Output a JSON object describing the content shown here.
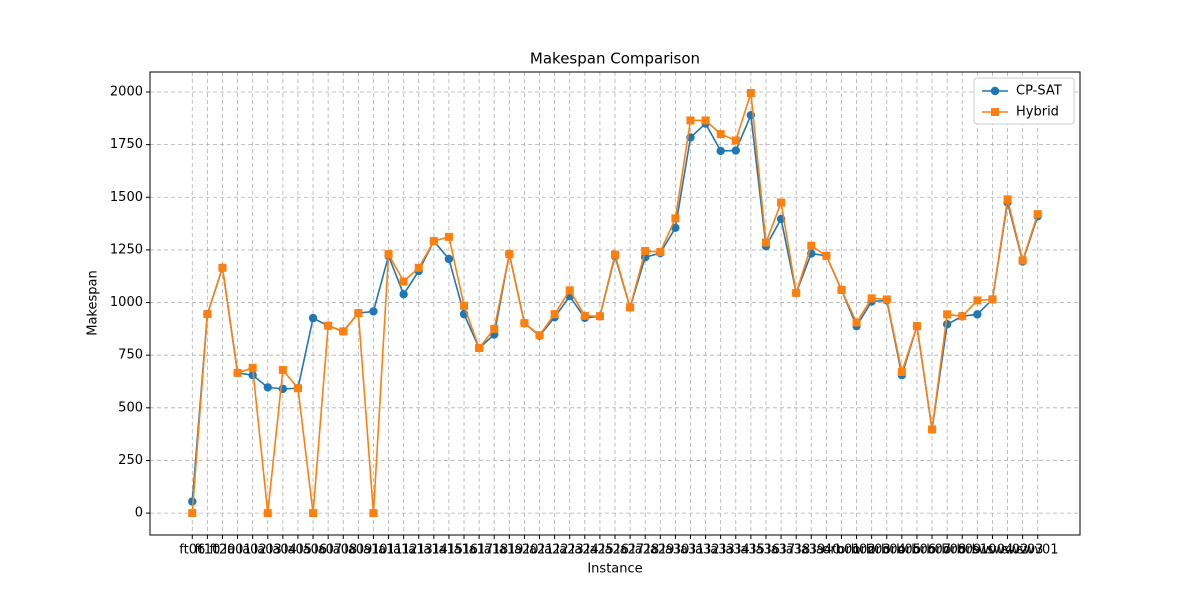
{
  "chart_data": {
    "type": "line",
    "title": "Makespan Comparison",
    "xlabel": "Instance",
    "ylabel": "Makespan",
    "categories": [
      "ft06",
      "ft10",
      "ft20",
      "la01",
      "la02",
      "la03",
      "la04",
      "la05",
      "la06",
      "la07",
      "la08",
      "la09",
      "la10",
      "la11",
      "la12",
      "la13",
      "la14",
      "la15",
      "la16",
      "la17",
      "la18",
      "la19",
      "la20",
      "la21",
      "la22",
      "la23",
      "la24",
      "la25",
      "la26",
      "la27",
      "la28",
      "la29",
      "la30",
      "la31",
      "la32",
      "la33",
      "la34",
      "la35",
      "la36",
      "la37",
      "la38",
      "la39",
      "la40",
      "orb01",
      "orb02",
      "orb03",
      "orb04",
      "orb05",
      "orb06",
      "orb07",
      "orb08",
      "orb09",
      "orb10",
      "swv04",
      "swv02",
      "swv03",
      "swv01"
    ],
    "series": [
      {
        "name": "CP-SAT",
        "color": "#1f77b4",
        "marker": "circle",
        "values": [
          55,
          945,
          1165,
          666,
          655,
          597,
          590,
          593,
          926,
          890,
          863,
          950,
          958,
          1222,
          1039,
          1150,
          1292,
          1207,
          945,
          784,
          848,
          1230,
          902,
          842,
          930,
          1030,
          927,
          935,
          1220,
          977,
          1215,
          1235,
          1355,
          1784,
          1850,
          1720,
          1722,
          1890,
          1268,
          1397,
          1046,
          1233,
          1222,
          1060,
          888,
          1005,
          1010,
          655,
          888,
          397,
          897,
          935,
          944,
          1015,
          1475,
          1195,
          1410
        ]
      },
      {
        "name": "Hybrid",
        "color": "#ff7f0e",
        "marker": "square",
        "values": [
          0,
          945,
          1165,
          666,
          690,
          0,
          680,
          593,
          0,
          890,
          863,
          950,
          0,
          1230,
          1100,
          1165,
          1292,
          1312,
          985,
          784,
          875,
          1230,
          902,
          845,
          945,
          1058,
          937,
          935,
          1228,
          977,
          1245,
          1240,
          1400,
          1865,
          1865,
          1800,
          1770,
          1995,
          1285,
          1475,
          1046,
          1270,
          1222,
          1060,
          905,
          1020,
          1015,
          670,
          888,
          397,
          944,
          935,
          1010,
          1015,
          1490,
          1200,
          1420
        ]
      }
    ],
    "ylim": [
      -104,
      2095
    ],
    "yticks": [
      0,
      250,
      500,
      750,
      1000,
      1250,
      1500,
      1750,
      2000
    ],
    "grid": true,
    "legend": "upper right"
  }
}
